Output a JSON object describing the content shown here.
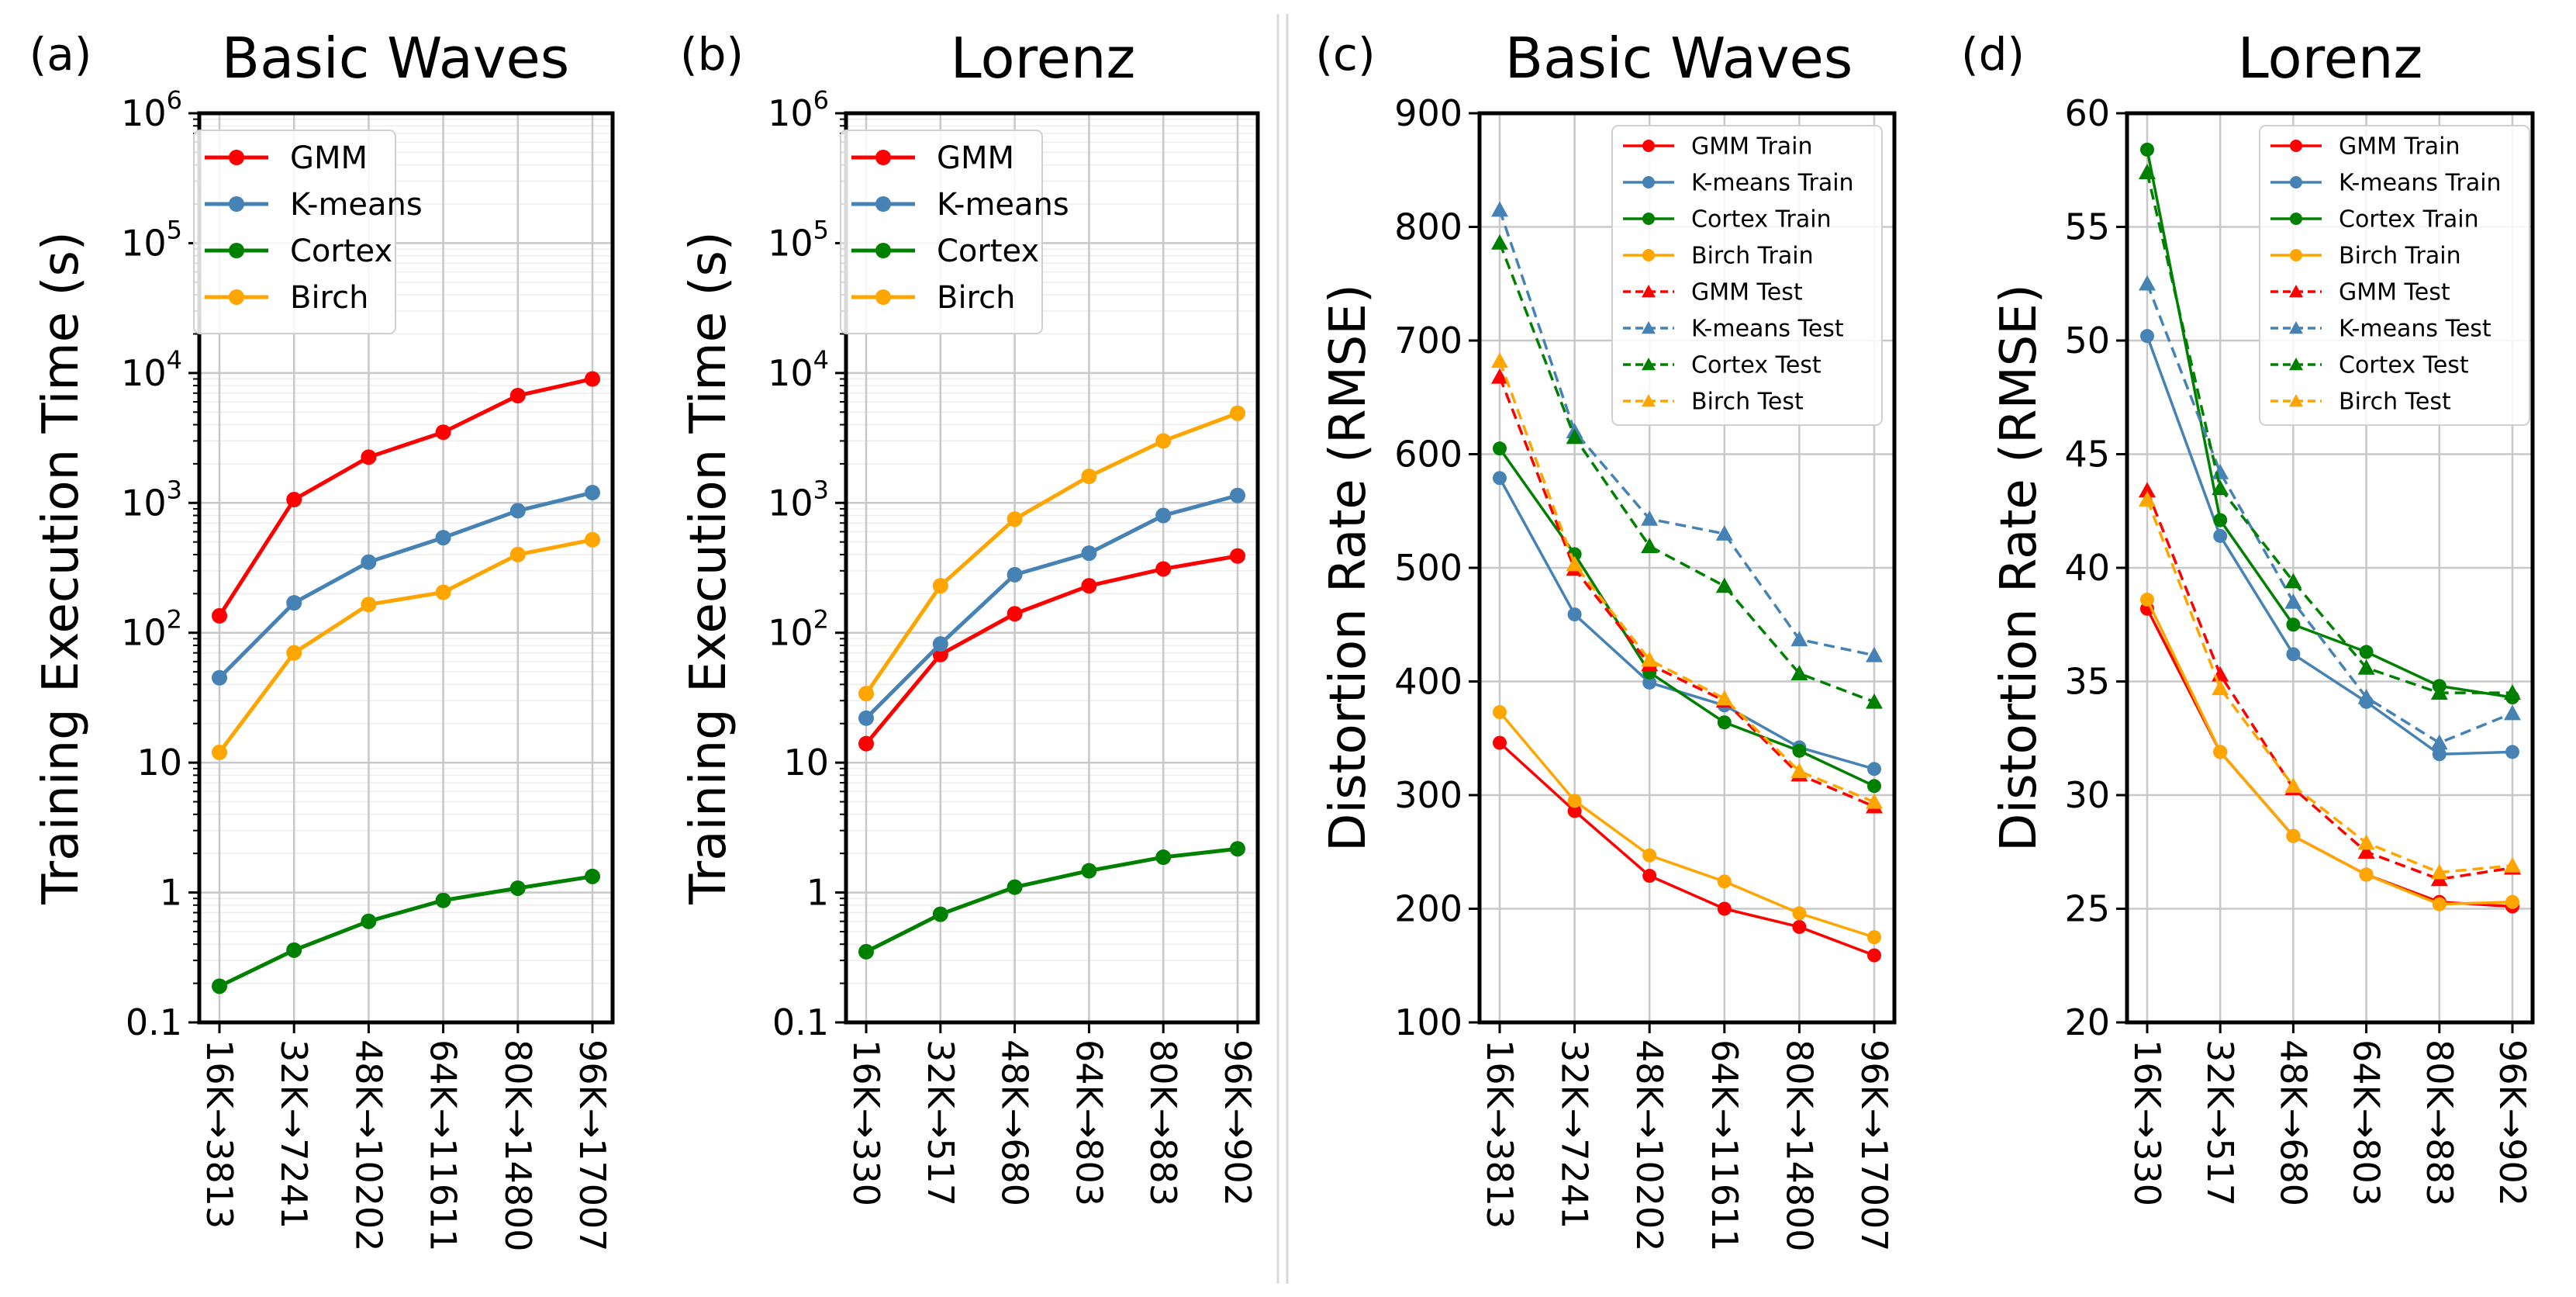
{
  "figure": {
    "panels": [
      {
        "id": "a",
        "label": "(a)"
      },
      {
        "id": "b",
        "label": "(b)"
      },
      {
        "id": "c",
        "label": "(c)"
      },
      {
        "id": "d",
        "label": "(d)"
      }
    ]
  },
  "chart_data": [
    {
      "id": "a",
      "panel_label": "(a)",
      "type": "line",
      "title": "Basic Waves",
      "xlabel": "",
      "ylabel": "Training Execution Time (s)",
      "yscale": "log",
      "ylim": [
        0.1,
        1000000
      ],
      "grid": true,
      "legend": "top-left",
      "yticks": [
        {
          "value": 0.1,
          "label": "0.1"
        },
        {
          "value": 1,
          "label": "1"
        },
        {
          "value": 10,
          "label": "10"
        },
        {
          "value": 100,
          "label": "10",
          "exp": "2"
        },
        {
          "value": 1000,
          "label": "10",
          "exp": "3"
        },
        {
          "value": 10000,
          "label": "10",
          "exp": "4"
        },
        {
          "value": 100000,
          "label": "10",
          "exp": "5"
        },
        {
          "value": 1000000,
          "label": "10",
          "exp": "6"
        }
      ],
      "categories": [
        "16K→3813",
        "32K→7241",
        "48K→10202",
        "64K→11611",
        "80K→14800",
        "96K→17007"
      ],
      "series": [
        {
          "name": "GMM",
          "color": "#ff0000",
          "marker": "circle",
          "dash": false,
          "values": [
            135,
            1060,
            2250,
            3500,
            6700,
            9000
          ]
        },
        {
          "name": "K-means",
          "color": "#4682b4",
          "marker": "circle",
          "dash": false,
          "values": [
            45,
            170,
            350,
            540,
            870,
            1200
          ]
        },
        {
          "name": "Cortex",
          "color": "#008000",
          "marker": "circle",
          "dash": false,
          "values": [
            0.19,
            0.36,
            0.6,
            0.87,
            1.08,
            1.33
          ]
        },
        {
          "name": "Birch",
          "color": "#ffa500",
          "marker": "circle",
          "dash": false,
          "values": [
            12,
            70,
            165,
            205,
            400,
            520
          ]
        }
      ]
    },
    {
      "id": "b",
      "panel_label": "(b)",
      "type": "line",
      "title": "Lorenz",
      "xlabel": "",
      "ylabel": "Training Execution Time (s)",
      "yscale": "log",
      "ylim": [
        0.1,
        1000000
      ],
      "grid": true,
      "legend": "top-left",
      "yticks": [
        {
          "value": 0.1,
          "label": "0.1"
        },
        {
          "value": 1,
          "label": "1"
        },
        {
          "value": 10,
          "label": "10"
        },
        {
          "value": 100,
          "label": "10",
          "exp": "2"
        },
        {
          "value": 1000,
          "label": "10",
          "exp": "3"
        },
        {
          "value": 10000,
          "label": "10",
          "exp": "4"
        },
        {
          "value": 100000,
          "label": "10",
          "exp": "5"
        },
        {
          "value": 1000000,
          "label": "10",
          "exp": "6"
        }
      ],
      "categories": [
        "16K→330",
        "32K→517",
        "48K→680",
        "64K→803",
        "80K→883",
        "96K→902"
      ],
      "series": [
        {
          "name": "GMM",
          "color": "#ff0000",
          "marker": "circle",
          "dash": false,
          "values": [
            14,
            68,
            140,
            230,
            310,
            390
          ]
        },
        {
          "name": "K-means",
          "color": "#4682b4",
          "marker": "circle",
          "dash": false,
          "values": [
            22,
            82,
            280,
            410,
            800,
            1140
          ]
        },
        {
          "name": "Cortex",
          "color": "#008000",
          "marker": "circle",
          "dash": false,
          "values": [
            0.35,
            0.68,
            1.1,
            1.47,
            1.87,
            2.17
          ]
        },
        {
          "name": "Birch",
          "color": "#ffa500",
          "marker": "circle",
          "dash": false,
          "values": [
            34,
            230,
            750,
            1600,
            3000,
            4900
          ]
        }
      ]
    },
    {
      "id": "c",
      "panel_label": "(c)",
      "type": "line",
      "title": "Basic Waves",
      "xlabel": "",
      "ylabel": "Distortion Rate (RMSE)",
      "yscale": "linear",
      "ylim": [
        100,
        900
      ],
      "grid": true,
      "legend": "top-right",
      "yticks": [
        {
          "value": 100,
          "label": "100"
        },
        {
          "value": 200,
          "label": "200"
        },
        {
          "value": 300,
          "label": "300"
        },
        {
          "value": 400,
          "label": "400"
        },
        {
          "value": 500,
          "label": "500"
        },
        {
          "value": 600,
          "label": "600"
        },
        {
          "value": 700,
          "label": "700"
        },
        {
          "value": 800,
          "label": "800"
        },
        {
          "value": 900,
          "label": "900"
        }
      ],
      "categories": [
        "16K→3813",
        "32K→7241",
        "48K→10202",
        "64K→11611",
        "80K→14800",
        "96K→17007"
      ],
      "series": [
        {
          "name": "GMM Train",
          "color": "#ff0000",
          "marker": "circle",
          "dash": false,
          "values": [
            346,
            286,
            229,
            200,
            184,
            159
          ]
        },
        {
          "name": "K-means Train",
          "color": "#4682b4",
          "marker": "circle",
          "dash": false,
          "values": [
            579,
            459,
            399,
            379,
            342,
            323
          ]
        },
        {
          "name": "Cortex Train",
          "color": "#008000",
          "marker": "circle",
          "dash": false,
          "values": [
            605,
            512,
            408,
            364,
            339,
            308
          ]
        },
        {
          "name": "Birch Train",
          "color": "#ffa500",
          "marker": "circle",
          "dash": false,
          "values": [
            373,
            295,
            247,
            224,
            196,
            175
          ]
        },
        {
          "name": "GMM Test",
          "color": "#ff0000",
          "marker": "triangle",
          "dash": true,
          "values": [
            668,
            499,
            415,
            383,
            318,
            290
          ]
        },
        {
          "name": "K-means Test",
          "color": "#4682b4",
          "marker": "triangle",
          "dash": true,
          "values": [
            815,
            620,
            543,
            530,
            437,
            423
          ]
        },
        {
          "name": "Cortex Test",
          "color": "#008000",
          "marker": "triangle",
          "dash": true,
          "values": [
            786,
            615,
            519,
            484,
            407,
            382
          ]
        },
        {
          "name": "Birch Test",
          "color": "#ffa500",
          "marker": "triangle",
          "dash": true,
          "values": [
            682,
            503,
            419,
            385,
            321,
            294
          ]
        }
      ]
    },
    {
      "id": "d",
      "panel_label": "(d)",
      "type": "line",
      "title": "Lorenz",
      "xlabel": "",
      "ylabel": "Distortion Rate (RMSE)",
      "yscale": "linear",
      "ylim": [
        20,
        60
      ],
      "grid": true,
      "legend": "top-right",
      "yticks": [
        {
          "value": 20,
          "label": "20"
        },
        {
          "value": 25,
          "label": "25"
        },
        {
          "value": 30,
          "label": "30"
        },
        {
          "value": 35,
          "label": "35"
        },
        {
          "value": 40,
          "label": "40"
        },
        {
          "value": 45,
          "label": "45"
        },
        {
          "value": 50,
          "label": "50"
        },
        {
          "value": 55,
          "label": "55"
        },
        {
          "value": 60,
          "label": "60"
        }
      ],
      "categories": [
        "16K→330",
        "32K→517",
        "48K→680",
        "64K→803",
        "80K→883",
        "96K→902"
      ],
      "series": [
        {
          "name": "GMM Train",
          "color": "#ff0000",
          "marker": "circle",
          "dash": false,
          "values": [
            38.2,
            31.9,
            28.2,
            26.5,
            25.3,
            25.1
          ]
        },
        {
          "name": "K-means Train",
          "color": "#4682b4",
          "marker": "circle",
          "dash": false,
          "values": [
            50.2,
            41.4,
            36.2,
            34.1,
            31.8,
            31.9
          ]
        },
        {
          "name": "Cortex Train",
          "color": "#008000",
          "marker": "circle",
          "dash": false,
          "values": [
            58.4,
            42.1,
            37.5,
            36.3,
            34.8,
            34.3
          ]
        },
        {
          "name": "Birch Train",
          "color": "#ffa500",
          "marker": "circle",
          "dash": false,
          "values": [
            38.6,
            31.9,
            28.2,
            26.5,
            25.2,
            25.3
          ]
        },
        {
          "name": "GMM Test",
          "color": "#ff0000",
          "marker": "triangle",
          "dash": true,
          "values": [
            43.4,
            35.3,
            30.3,
            27.5,
            26.3,
            26.8
          ]
        },
        {
          "name": "K-means Test",
          "color": "#4682b4",
          "marker": "triangle",
          "dash": true,
          "values": [
            52.5,
            44.2,
            38.5,
            34.3,
            32.3,
            33.6
          ]
        },
        {
          "name": "Cortex Test",
          "color": "#008000",
          "marker": "triangle",
          "dash": true,
          "values": [
            57.4,
            43.5,
            39.4,
            35.6,
            34.5,
            34.5
          ]
        },
        {
          "name": "Birch Test",
          "color": "#ffa500",
          "marker": "triangle",
          "dash": true,
          "values": [
            43.0,
            34.7,
            30.4,
            27.9,
            26.6,
            26.9
          ]
        }
      ]
    }
  ]
}
